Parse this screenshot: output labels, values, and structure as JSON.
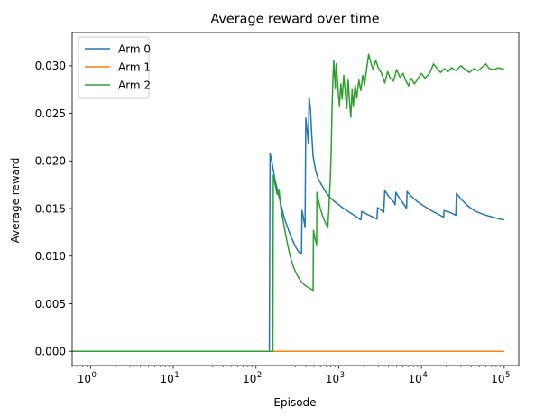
{
  "chart_data": {
    "type": "line",
    "title": "Average reward over time",
    "xlabel": "Episode",
    "ylabel": "Average reward",
    "x_scale": "log",
    "xlim": [
      0.6,
      150000
    ],
    "ylim": [
      -0.0015,
      0.0335
    ],
    "x_ticks": [
      {
        "value": 1,
        "base": "10",
        "exp": "0"
      },
      {
        "value": 10,
        "base": "10",
        "exp": "1"
      },
      {
        "value": 100,
        "base": "10",
        "exp": "2"
      },
      {
        "value": 1000,
        "base": "10",
        "exp": "3"
      },
      {
        "value": 10000,
        "base": "10",
        "exp": "4"
      },
      {
        "value": 100000,
        "base": "10",
        "exp": "5"
      }
    ],
    "y_ticks": [
      {
        "value": 0.0,
        "label": "0.000"
      },
      {
        "value": 0.005,
        "label": "0.005"
      },
      {
        "value": 0.01,
        "label": "0.010"
      },
      {
        "value": 0.015,
        "label": "0.015"
      },
      {
        "value": 0.02,
        "label": "0.020"
      },
      {
        "value": 0.025,
        "label": "0.025"
      },
      {
        "value": 0.03,
        "label": "0.030"
      }
    ],
    "grid": false,
    "legend_position": "top-left",
    "series": [
      {
        "name": "Arm 0",
        "color": "#1f77b4",
        "points": [
          [
            0.6,
            0
          ],
          [
            145,
            0
          ],
          [
            148,
            0.0208
          ],
          [
            155,
            0.02
          ],
          [
            170,
            0.018
          ],
          [
            190,
            0.0162
          ],
          [
            220,
            0.014
          ],
          [
            260,
            0.0122
          ],
          [
            300,
            0.011
          ],
          [
            330,
            0.0104
          ],
          [
            355,
            0.0103
          ],
          [
            360,
            0.0148
          ],
          [
            375,
            0.014
          ],
          [
            392,
            0.013
          ],
          [
            400,
            0.0245
          ],
          [
            415,
            0.0232
          ],
          [
            430,
            0.0218
          ],
          [
            438,
            0.0267
          ],
          [
            455,
            0.0255
          ],
          [
            470,
            0.023
          ],
          [
            490,
            0.0205
          ],
          [
            510,
            0.0196
          ],
          [
            530,
            0.0189
          ],
          [
            560,
            0.0182
          ],
          [
            600,
            0.0177
          ],
          [
            650,
            0.0172
          ],
          [
            700,
            0.0167
          ],
          [
            760,
            0.0163
          ],
          [
            820,
            0.016
          ],
          [
            900,
            0.0157
          ],
          [
            1000,
            0.0154
          ],
          [
            1150,
            0.015
          ],
          [
            1350,
            0.0146
          ],
          [
            1600,
            0.0142
          ],
          [
            1850,
            0.0138
          ],
          [
            1900,
            0.0147
          ],
          [
            2200,
            0.0144
          ],
          [
            2600,
            0.0141
          ],
          [
            2900,
            0.0139
          ],
          [
            2950,
            0.0151
          ],
          [
            3300,
            0.0148
          ],
          [
            3500,
            0.0146
          ],
          [
            3600,
            0.0169
          ],
          [
            4000,
            0.0163
          ],
          [
            4600,
            0.0157
          ],
          [
            4800,
            0.0154
          ],
          [
            4900,
            0.0167
          ],
          [
            5500,
            0.016
          ],
          [
            6300,
            0.0153
          ],
          [
            6600,
            0.015
          ],
          [
            6700,
            0.0168
          ],
          [
            7500,
            0.0163
          ],
          [
            9000,
            0.0157
          ],
          [
            11000,
            0.0152
          ],
          [
            13000,
            0.0148
          ],
          [
            16000,
            0.0144
          ],
          [
            18500,
            0.0141
          ],
          [
            18800,
            0.0148
          ],
          [
            22000,
            0.0146
          ],
          [
            26000,
            0.0143
          ],
          [
            26500,
            0.0166
          ],
          [
            30000,
            0.016
          ],
          [
            36000,
            0.0153
          ],
          [
            45000,
            0.0147
          ],
          [
            60000,
            0.0143
          ],
          [
            80000,
            0.014
          ],
          [
            100000,
            0.0138
          ]
        ]
      },
      {
        "name": "Arm 1",
        "color": "#ff7f0e",
        "points": [
          [
            0.6,
            0
          ],
          [
            100000,
            0
          ]
        ]
      },
      {
        "name": "Arm 2",
        "color": "#2ca02c",
        "points": [
          [
            0.6,
            0
          ],
          [
            160,
            0
          ],
          [
            162,
            0.0185
          ],
          [
            170,
            0.0176
          ],
          [
            180,
            0.0165
          ],
          [
            190,
            0.017
          ],
          [
            200,
            0.015
          ],
          [
            220,
            0.013
          ],
          [
            240,
            0.0113
          ],
          [
            260,
            0.0099
          ],
          [
            285,
            0.0088
          ],
          [
            310,
            0.0081
          ],
          [
            340,
            0.0075
          ],
          [
            370,
            0.0071
          ],
          [
            410,
            0.0068
          ],
          [
            450,
            0.0066
          ],
          [
            490,
            0.0064
          ],
          [
            495,
            0.0127
          ],
          [
            515,
            0.0119
          ],
          [
            540,
            0.0112
          ],
          [
            545,
            0.0167
          ],
          [
            570,
            0.0158
          ],
          [
            600,
            0.015
          ],
          [
            640,
            0.0142
          ],
          [
            690,
            0.0135
          ],
          [
            740,
            0.013
          ],
          [
            750,
            0.0142
          ],
          [
            760,
            0.0148
          ],
          [
            770,
            0.0162
          ],
          [
            790,
            0.018
          ],
          [
            810,
            0.021
          ],
          [
            830,
            0.0255
          ],
          [
            850,
            0.0285
          ],
          [
            870,
            0.0306
          ],
          [
            890,
            0.029
          ],
          [
            910,
            0.0276
          ],
          [
            930,
            0.0302
          ],
          [
            960,
            0.0288
          ],
          [
            990,
            0.027
          ],
          [
            1020,
            0.0258
          ],
          [
            1060,
            0.0281
          ],
          [
            1100,
            0.0265
          ],
          [
            1150,
            0.029
          ],
          [
            1200,
            0.0272
          ],
          [
            1250,
            0.0255
          ],
          [
            1300,
            0.0285
          ],
          [
            1350,
            0.0262
          ],
          [
            1400,
            0.0246
          ],
          [
            1450,
            0.0275
          ],
          [
            1500,
            0.0258
          ],
          [
            1580,
            0.028
          ],
          [
            1650,
            0.0266
          ],
          [
            1750,
            0.0285
          ],
          [
            1850,
            0.0274
          ],
          [
            1950,
            0.029
          ],
          [
            2050,
            0.028
          ],
          [
            2200,
            0.03
          ],
          [
            2300,
            0.0312
          ],
          [
            2450,
            0.0303
          ],
          [
            2600,
            0.0296
          ],
          [
            2800,
            0.0306
          ],
          [
            3000,
            0.0298
          ],
          [
            3300,
            0.0292
          ],
          [
            3600,
            0.0282
          ],
          [
            3900,
            0.0294
          ],
          [
            4200,
            0.0287
          ],
          [
            4600,
            0.0284
          ],
          [
            5000,
            0.0296
          ],
          [
            5500,
            0.0288
          ],
          [
            6000,
            0.0292
          ],
          [
            6500,
            0.0284
          ],
          [
            7000,
            0.0279
          ],
          [
            7500,
            0.0287
          ],
          [
            8200,
            0.0281
          ],
          [
            9000,
            0.0286
          ],
          [
            10000,
            0.0292
          ],
          [
            11000,
            0.0287
          ],
          [
            12500,
            0.0292
          ],
          [
            14000,
            0.0302
          ],
          [
            15500,
            0.0297
          ],
          [
            17000,
            0.0293
          ],
          [
            19000,
            0.0297
          ],
          [
            21000,
            0.0294
          ],
          [
            23000,
            0.0298
          ],
          [
            26000,
            0.0295
          ],
          [
            30000,
            0.03
          ],
          [
            34000,
            0.0296
          ],
          [
            38000,
            0.0293
          ],
          [
            43000,
            0.0297
          ],
          [
            48000,
            0.0295
          ],
          [
            55000,
            0.0299
          ],
          [
            60000,
            0.0302
          ],
          [
            66000,
            0.0297
          ],
          [
            75000,
            0.0296
          ],
          [
            85000,
            0.0298
          ],
          [
            100000,
            0.0296
          ]
        ]
      }
    ]
  }
}
